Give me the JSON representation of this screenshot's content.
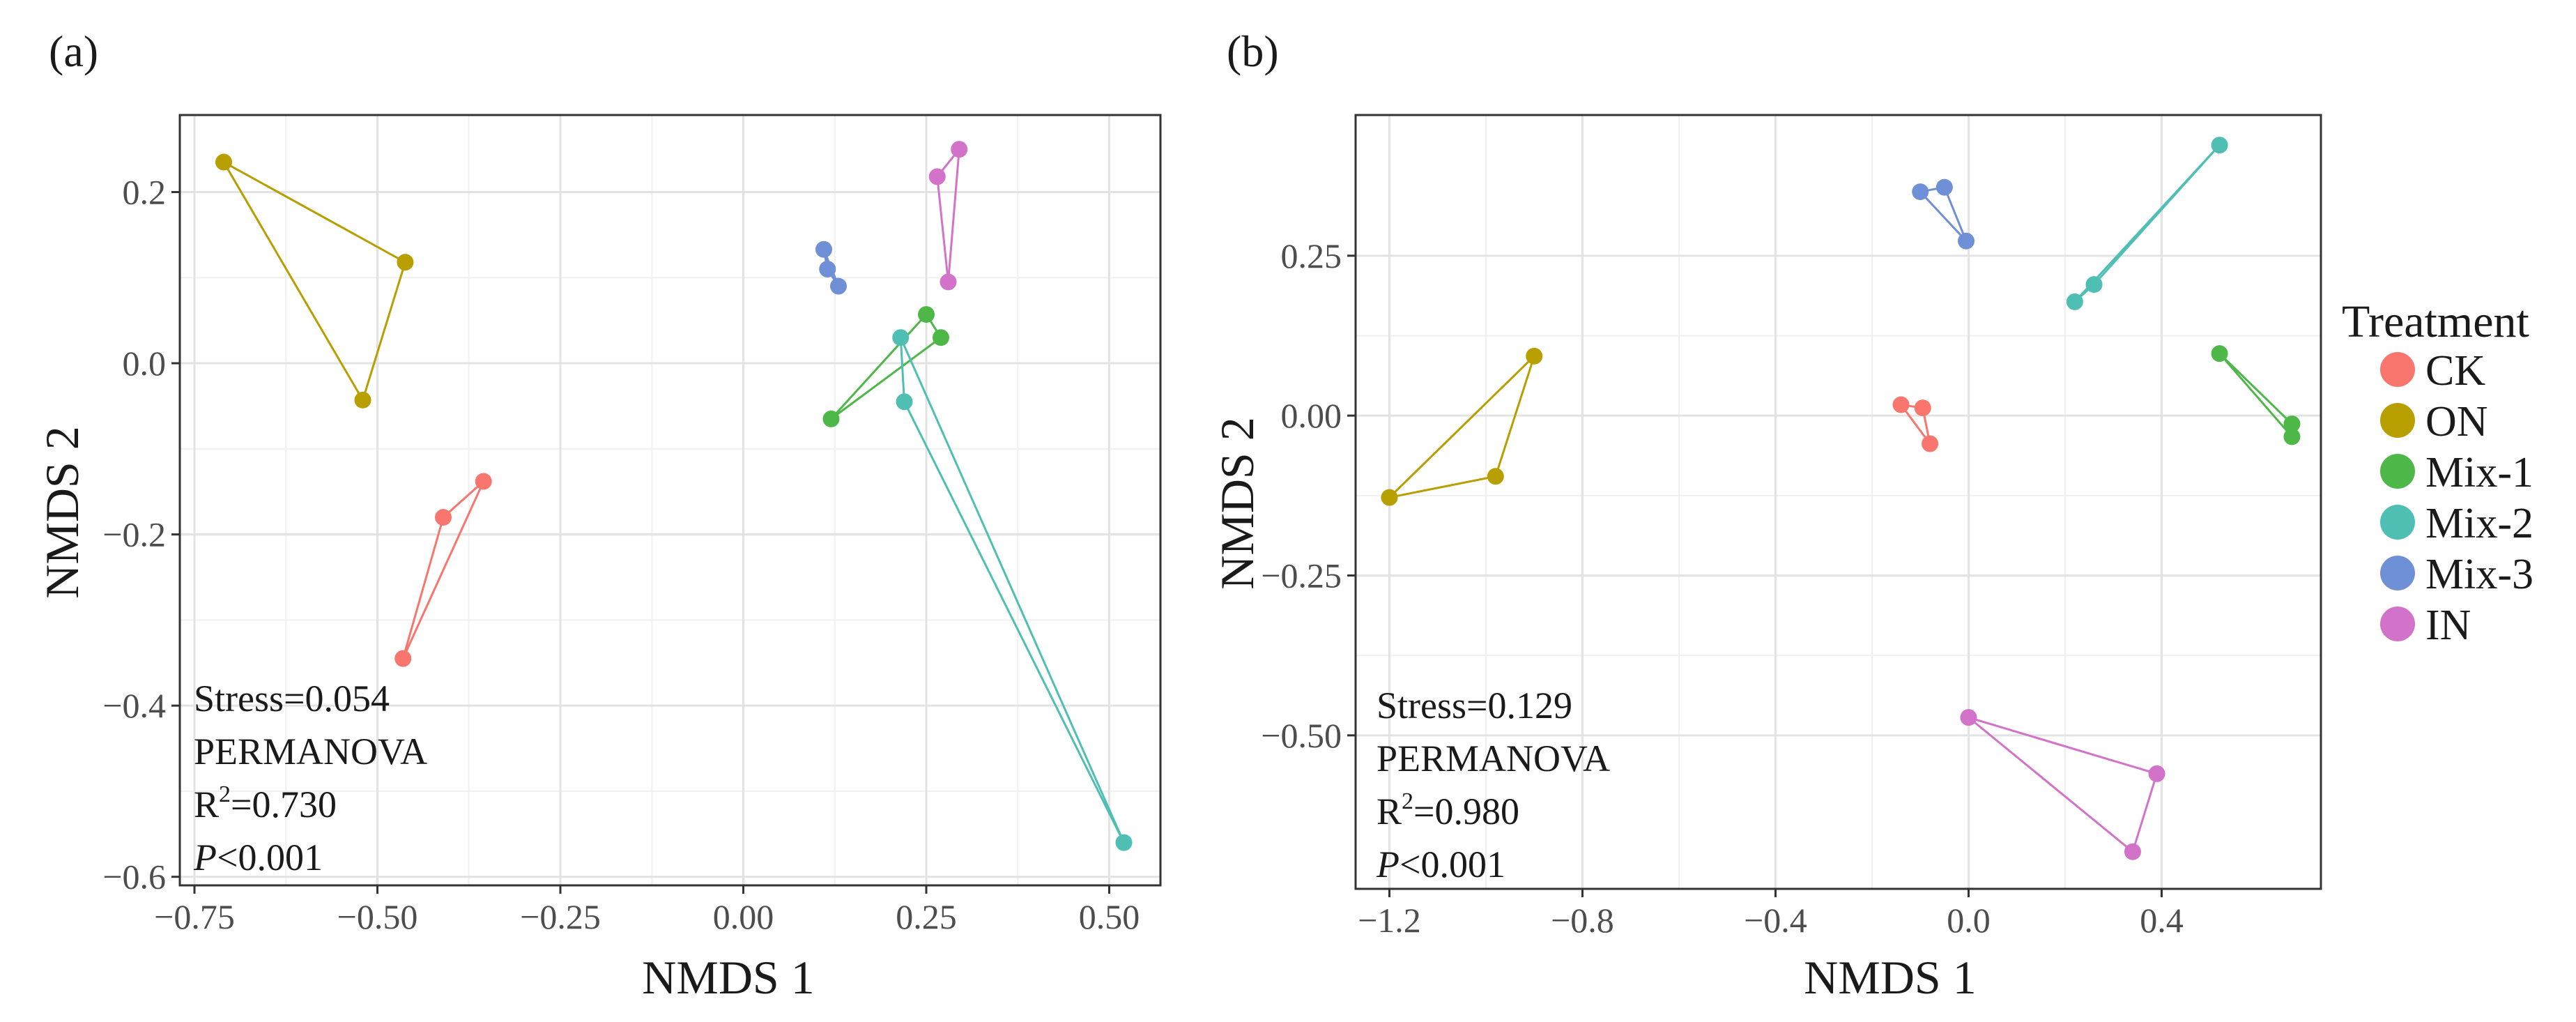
{
  "figure": {
    "legend": {
      "title": "Treatment",
      "items": [
        {
          "label": "CK",
          "color": "#F8766D"
        },
        {
          "label": "ON",
          "color": "#B79F00"
        },
        {
          "label": "Mix-1",
          "color": "#4DB848"
        },
        {
          "label": "Mix-2",
          "color": "#4FBFB4"
        },
        {
          "label": "Mix-3",
          "color": "#6F8FD6"
        },
        {
          "label": "IN",
          "color": "#D273C9"
        }
      ]
    }
  },
  "chart_data": [
    {
      "panel": "(a)",
      "type": "scatter",
      "xlabel": "NMDS 1",
      "ylabel": "NMDS 2",
      "xlim": [
        -0.77,
        0.57
      ],
      "ylim": [
        -0.61,
        0.29
      ],
      "xticks": [
        -0.75,
        -0.5,
        -0.25,
        0.0,
        0.25,
        0.5
      ],
      "xtick_labels": [
        "−0.75",
        "−0.50",
        "−0.25",
        "0.00",
        "0.25",
        "0.50"
      ],
      "yticks": [
        -0.6,
        -0.4,
        -0.2,
        0.0,
        0.2
      ],
      "ytick_labels": [
        "−0.6",
        "−0.4",
        "−0.2",
        "0.0",
        "0.2"
      ],
      "grid": true,
      "annotation": {
        "stress": "Stress=0.054",
        "test": "PERMANOVA",
        "r2_prefix": "R",
        "r2_sup": "2",
        "r2_value": "=0.730",
        "p_italic": "P",
        "p_value": "<0.001"
      },
      "series": [
        {
          "name": "CK",
          "points": [
            [
              -0.41,
              -0.18
            ],
            [
              -0.355,
              -0.138
            ],
            [
              -0.465,
              -0.345
            ]
          ]
        },
        {
          "name": "ON",
          "points": [
            [
              -0.71,
              0.235
            ],
            [
              -0.462,
              0.118
            ],
            [
              -0.52,
              -0.043
            ]
          ]
        },
        {
          "name": "Mix-1",
          "points": [
            [
              0.12,
              -0.065
            ],
            [
              0.25,
              0.057
            ],
            [
              0.27,
              0.03
            ]
          ]
        },
        {
          "name": "Mix-2",
          "points": [
            [
              0.215,
              0.03
            ],
            [
              0.22,
              -0.045
            ],
            [
              0.52,
              -0.56
            ]
          ]
        },
        {
          "name": "Mix-3",
          "points": [
            [
              0.11,
              0.133
            ],
            [
              0.115,
              0.11
            ],
            [
              0.13,
              0.09
            ]
          ]
        },
        {
          "name": "IN",
          "points": [
            [
              0.265,
              0.218
            ],
            [
              0.295,
              0.25
            ],
            [
              0.28,
              0.095
            ]
          ]
        }
      ]
    },
    {
      "panel": "(b)",
      "type": "scatter",
      "xlabel": "NMDS 1",
      "ylabel": "NMDS 2",
      "xlim": [
        -1.27,
        0.73
      ],
      "ylim": [
        -0.74,
        0.47
      ],
      "xticks": [
        -1.2,
        -0.8,
        -0.4,
        0.0,
        0.4
      ],
      "xtick_labels": [
        "−1.2",
        "−0.8",
        "−0.4",
        "0.0",
        "0.4"
      ],
      "yticks": [
        -0.5,
        -0.25,
        0.0,
        0.25
      ],
      "ytick_labels": [
        "−0.50",
        "−0.25",
        "0.00",
        "0.25"
      ],
      "grid": true,
      "annotation": {
        "stress": "Stress=0.129",
        "test": "PERMANOVA",
        "r2_prefix": "R",
        "r2_sup": "2",
        "r2_value": "=0.980",
        "p_italic": "P",
        "p_value": "<0.001"
      },
      "series": [
        {
          "name": "CK",
          "points": [
            [
              -0.14,
              0.017
            ],
            [
              -0.095,
              0.012
            ],
            [
              -0.08,
              -0.044
            ]
          ]
        },
        {
          "name": "ON",
          "points": [
            [
              -1.2,
              -0.128
            ],
            [
              -0.9,
              0.093
            ],
            [
              -0.98,
              -0.095
            ]
          ]
        },
        {
          "name": "Mix-1",
          "points": [
            [
              0.52,
              0.097
            ],
            [
              0.67,
              -0.013
            ],
            [
              0.67,
              -0.033
            ]
          ]
        },
        {
          "name": "Mix-2",
          "points": [
            [
              0.52,
              0.423
            ],
            [
              0.26,
              0.205
            ],
            [
              0.22,
              0.178
            ]
          ]
        },
        {
          "name": "Mix-3",
          "points": [
            [
              -0.1,
              0.35
            ],
            [
              -0.05,
              0.357
            ],
            [
              -0.005,
              0.273
            ]
          ]
        },
        {
          "name": "IN",
          "points": [
            [
              0.0,
              -0.472
            ],
            [
              0.39,
              -0.56
            ],
            [
              0.34,
              -0.682
            ]
          ]
        }
      ]
    }
  ]
}
